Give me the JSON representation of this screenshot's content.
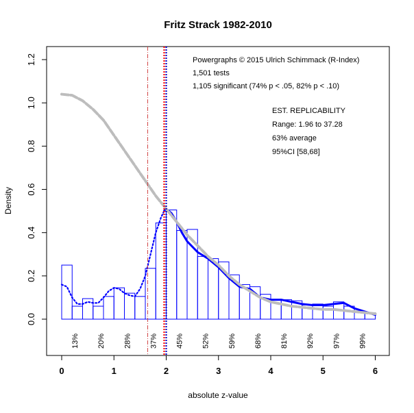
{
  "chart_data": {
    "type": "histogram",
    "title": "Fritz Strack 1982-2010",
    "xlabel": "absolute z-value",
    "ylabel": "Density",
    "xlim": [
      -0.25,
      6.1
    ],
    "ylim": [
      -0.15,
      1.25
    ],
    "x_ticks": [
      0,
      1,
      2,
      3,
      4,
      5,
      6
    ],
    "y_ticks": [
      0.0,
      0.2,
      0.4,
      0.6,
      0.8,
      1.0,
      1.2
    ],
    "bin_width": 0.2,
    "bars": {
      "x_start": [
        0,
        0.2,
        0.4,
        0.6,
        0.8,
        1.0,
        1.2,
        1.4,
        1.6,
        1.8,
        2.0,
        2.2,
        2.4,
        2.6,
        2.8,
        3.0,
        3.2,
        3.4,
        3.6,
        3.8,
        4.0,
        4.2,
        4.4,
        4.6,
        4.8,
        5.0,
        5.2,
        5.4,
        5.6,
        5.8
      ],
      "density": [
        0.25,
        0.06,
        0.095,
        0.06,
        0.105,
        0.145,
        0.12,
        0.105,
        0.235,
        0.445,
        0.505,
        0.41,
        0.415,
        0.29,
        0.28,
        0.265,
        0.205,
        0.16,
        0.15,
        0.115,
        0.09,
        0.09,
        0.085,
        0.065,
        0.07,
        0.06,
        0.08,
        0.06,
        0.03,
        0.03
      ]
    },
    "series": [
      {
        "name": "",
        "style": "dotted",
        "color": "#0000ff",
        "x": [
          0.0,
          0.1,
          0.2,
          0.3,
          0.4,
          0.5,
          0.6,
          0.7,
          0.8,
          0.9,
          1.0,
          1.1,
          1.2,
          1.3,
          1.4,
          1.5,
          1.6,
          1.7,
          1.8,
          1.9,
          1.96
        ],
        "y": [
          0.16,
          0.15,
          0.1,
          0.07,
          0.07,
          0.08,
          0.075,
          0.075,
          0.1,
          0.13,
          0.145,
          0.14,
          0.12,
          0.11,
          0.105,
          0.14,
          0.2,
          0.3,
          0.4,
          0.47,
          0.5
        ]
      },
      {
        "name": "",
        "style": "solid",
        "color": "#0000ff",
        "x": [
          1.96,
          2.0,
          2.1,
          2.2,
          2.3,
          2.4,
          2.6,
          2.8,
          3.0,
          3.2,
          3.4,
          3.6,
          3.8,
          4.0,
          4.2,
          4.4,
          4.6,
          4.8,
          5.0,
          5.2,
          5.4,
          5.6,
          5.8,
          6.0
        ],
        "y": [
          0.5,
          0.51,
          0.49,
          0.45,
          0.4,
          0.36,
          0.31,
          0.28,
          0.24,
          0.19,
          0.15,
          0.14,
          0.1,
          0.09,
          0.09,
          0.08,
          0.07,
          0.065,
          0.065,
          0.07,
          0.075,
          0.05,
          0.035,
          0.02
        ]
      },
      {
        "name": "",
        "style": "thick",
        "color": "#bdbdbd",
        "x": [
          0.0,
          0.2,
          0.4,
          0.6,
          0.8,
          1.0,
          1.2,
          1.4,
          1.6,
          1.8,
          2.0,
          2.2,
          2.4,
          2.6,
          2.8,
          3.0,
          3.2,
          3.4,
          3.6,
          3.8,
          4.0,
          4.2,
          4.4,
          4.6,
          4.8,
          5.0,
          5.2,
          5.4,
          5.6,
          5.8,
          6.0
        ],
        "y": [
          1.04,
          1.035,
          1.01,
          0.97,
          0.92,
          0.85,
          0.78,
          0.71,
          0.64,
          0.57,
          0.51,
          0.45,
          0.39,
          0.34,
          0.29,
          0.25,
          0.2,
          0.16,
          0.13,
          0.1,
          0.08,
          0.07,
          0.06,
          0.055,
          0.05,
          0.045,
          0.045,
          0.04,
          0.035,
          0.03,
          0.025
        ]
      }
    ],
    "vlines": [
      {
        "x": 1.645,
        "color": "#d04040",
        "style": "dashdot"
      },
      {
        "x": 1.96,
        "color": "#ff0000",
        "style": "dotted"
      },
      {
        "x": 2.0,
        "color": "#0000cc",
        "style": "dotted"
      }
    ],
    "percent_labels": [
      {
        "x": 0.25,
        "text": "13%"
      },
      {
        "x": 0.75,
        "text": "20%"
      },
      {
        "x": 1.25,
        "text": "28%"
      },
      {
        "x": 1.75,
        "text": "37%"
      },
      {
        "x": 2.25,
        "text": "45%"
      },
      {
        "x": 2.75,
        "text": "52%"
      },
      {
        "x": 3.25,
        "text": "59%"
      },
      {
        "x": 3.75,
        "text": "68%"
      },
      {
        "x": 4.25,
        "text": "81%"
      },
      {
        "x": 4.75,
        "text": "92%"
      },
      {
        "x": 5.25,
        "text": "97%"
      },
      {
        "x": 5.75,
        "text": "99%"
      }
    ],
    "annotations": [
      "Powergraphs © 2015 Ulrich Schimmack (R-Index)",
      "1,501 tests",
      "1,105 significant (74% p < .05, 82% p < .10)",
      "EST. REPLICABILITY",
      "Range: 1.96 to 37.28",
      "63% average",
      "95%CI [58,68]"
    ],
    "colors": {
      "bars": "#0000ff",
      "fit": "#bdbdbd"
    }
  }
}
